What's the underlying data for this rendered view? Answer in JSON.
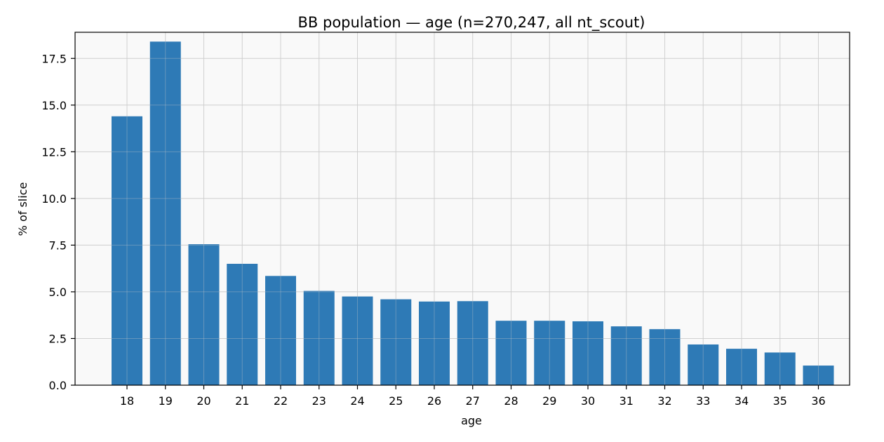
{
  "chart_data": {
    "type": "bar",
    "title": "BB population — age (n=270,247, all nt_scout)",
    "xlabel": "age",
    "ylabel": "% of slice",
    "categories": [
      "18",
      "19",
      "20",
      "21",
      "22",
      "23",
      "24",
      "25",
      "26",
      "27",
      "28",
      "29",
      "30",
      "31",
      "32",
      "33",
      "34",
      "35",
      "36"
    ],
    "values": [
      14.4,
      18.4,
      7.55,
      6.5,
      5.85,
      5.05,
      4.75,
      4.6,
      4.48,
      4.5,
      3.45,
      3.45,
      3.42,
      3.15,
      3.0,
      2.18,
      1.95,
      1.75,
      1.05
    ],
    "ylim": [
      0,
      18.9
    ],
    "yticks": [
      "0.0",
      "2.5",
      "5.0",
      "7.5",
      "10.0",
      "12.5",
      "15.0",
      "17.5"
    ],
    "grid": true,
    "colors": {
      "bar": "#2e7ab6",
      "plot_bg": "#f9f9f9",
      "grid": "#d6d6d6",
      "axis": "#000000"
    }
  }
}
